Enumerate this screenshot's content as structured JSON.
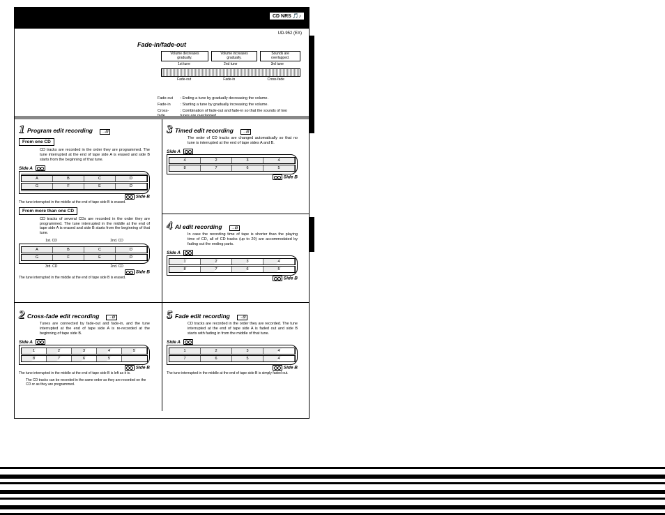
{
  "header": {
    "badge": "CD NRS",
    "badge_sub": "🎵♪",
    "model": "UD-952 (EX)"
  },
  "fade": {
    "title": "Fade-in/fade-out",
    "box1": "Volume decreases\ngradually.",
    "box2": "Volume increases\ngradually.",
    "box3": "Sounds are\noverlapped.",
    "tune1": "1st tune",
    "tune2": "2nd tune",
    "tune3": "3rd tune",
    "lbl_fadeout": "Fade-out",
    "lbl_fadein": "Fade-in",
    "lbl_cross": "Cross-fade",
    "def_fadeout_k": "Fade-out",
    "def_fadeout_v": ": Ending a tune by gradually decreasing the volume.",
    "def_fadein_k": "Fade-in",
    "def_fadein_v": ": Starting a tune by gradually increasing the volume.",
    "def_cross_k": "Cross-fade",
    "def_cross_v": ": Combination of fade-out and fade-in so that the sounds of two tunes are overlapped."
  },
  "sec1": {
    "num": "1",
    "title": "Program edit recording",
    "sub1": "From one CD",
    "text1": "CD tracks are recorded in the order they are programmed. The tune interrupted at the end of tape side A is erased and side B starts from the beginning of that tune.",
    "sideA": "Side A",
    "sideB": "Side B",
    "cellsA": [
      "A",
      "B",
      "C",
      "D"
    ],
    "cellsB": [
      "G",
      "F",
      "E",
      "D"
    ],
    "cap1": "The tune interrupted in the middle at the end of tape side B is erased.",
    "sub2": "From more than one CD",
    "text2": "CD tracks of several CDs are recorded in the order they are programmed. The tune interrupted in the middle at the end of tape side A is erased and side B starts from the beginning of that tune.",
    "lbl_1stcd": "1st. CD",
    "lbl_2ndcd": "2nd. CD",
    "lbl_3rdcd": "3rd. CD",
    "cells2A": [
      "A",
      "B",
      "C",
      "D"
    ],
    "cells2B": [
      "G",
      "F",
      "E",
      "D"
    ],
    "cap2": "The tune interrupted in the middle at the end of tape side B is erased."
  },
  "sec2": {
    "num": "2",
    "title": "Cross-fade edit recording",
    "text": "Tunes are connected by fade-out and fade-in, and the tune interrupted at the end of tape side A is re-recorded at the beginning of tape side B.",
    "sideA": "Side A",
    "sideB": "Side B",
    "cellsA": [
      "1",
      "2",
      "3",
      "4",
      "5"
    ],
    "cellsB": [
      "8",
      "7",
      "6",
      "5",
      ""
    ],
    "cap": "The tune interrupted in the middle at the end of tape side B is left as it is.",
    "note": "The CD tracks can be recorded in the same order as they are recorded on the CD or as they are programmed."
  },
  "sec3": {
    "num": "3",
    "title": "Timed edit recording",
    "text": "The order of CD tracks are changed automatically so that no tune is interrupted at the end of tape sides A and B.",
    "sideA": "Side A",
    "sideB": "Side B",
    "cellsA": [
      "4",
      "2",
      "3",
      "4"
    ],
    "cellsB": [
      "8",
      "7",
      "6",
      "5"
    ]
  },
  "sec4": {
    "num": "4",
    "title": "AI edit recording",
    "text": "In case the recording time of tape is shorter than the playing time of CD, all of CD tracks (up to 20) are accommodated by fading out the ending parts.",
    "sideA": "Side A",
    "sideB": "Side B",
    "cellsA": [
      "1",
      "2",
      "3",
      "4"
    ],
    "cellsB": [
      "8",
      "7",
      "6",
      "5"
    ]
  },
  "sec5": {
    "num": "5",
    "title": "Fade edit recording",
    "text": "CD tracks are recorded in the order they are recorded. The tune interrupted at the end of tape side A is faded out and side B starts with fading in from the middle of that tune.",
    "sideA": "Side A",
    "sideB": "Side B",
    "cellsA": [
      "1",
      "2",
      "3",
      "4"
    ],
    "cellsB": [
      "7",
      "6",
      "5",
      "4"
    ],
    "cap": "The tune interrupted in the middle at the end of tape side B is simply faded out."
  }
}
